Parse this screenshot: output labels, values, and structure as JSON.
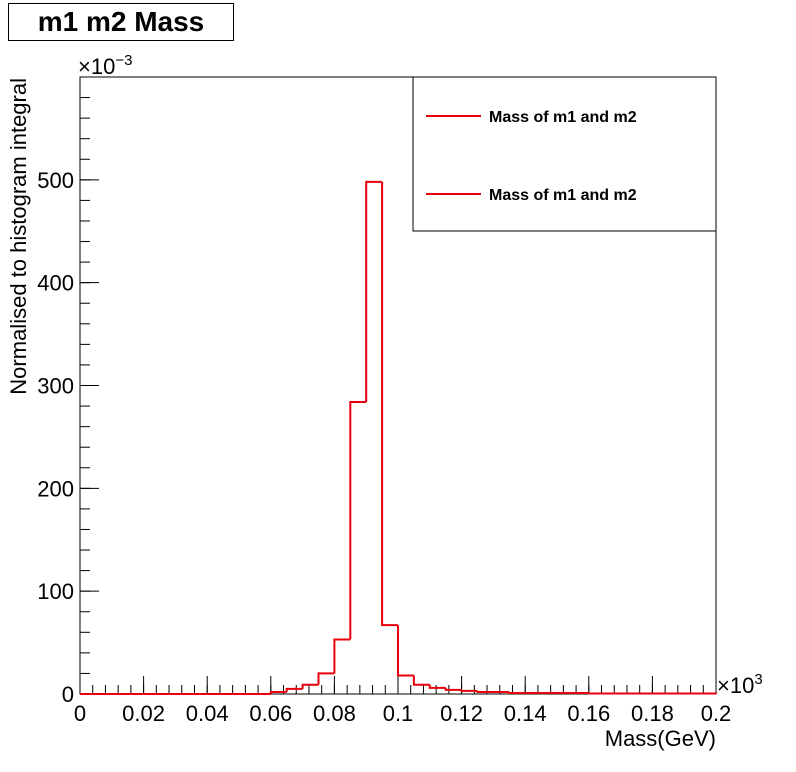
{
  "chart_data": {
    "type": "bar",
    "title": "m1 m2 Mass",
    "xlabel": "Mass(GeV)",
    "ylabel": "Normalised to histogram integral",
    "x_multiplier_label": "×10",
    "x_multiplier_exp": "3",
    "y_multiplier_label": "×10",
    "y_multiplier_exp": "−3",
    "xlim": [
      0,
      0.2
    ],
    "ylim": [
      0,
      600
    ],
    "x_ticks": [
      "0",
      "0.02",
      "0.04",
      "0.06",
      "0.08",
      "0.1",
      "0.12",
      "0.14",
      "0.16",
      "0.18",
      "0.2"
    ],
    "x_tick_values": [
      0,
      0.02,
      0.04,
      0.06,
      0.08,
      0.1,
      0.12,
      0.14,
      0.16,
      0.18,
      0.2
    ],
    "y_ticks": [
      "0",
      "100",
      "200",
      "300",
      "400",
      "500"
    ],
    "y_tick_values": [
      0,
      100,
      200,
      300,
      400,
      500
    ],
    "bin_edges": [
      0,
      0.005,
      0.01,
      0.015,
      0.02,
      0.025,
      0.03,
      0.035,
      0.04,
      0.045,
      0.05,
      0.055,
      0.06,
      0.065,
      0.07,
      0.075,
      0.08,
      0.085,
      0.09,
      0.095,
      0.1,
      0.105,
      0.11,
      0.115,
      0.12,
      0.125,
      0.13,
      0.135,
      0.14,
      0.145,
      0.15,
      0.155,
      0.16,
      0.165,
      0.17,
      0.175,
      0.18,
      0.185,
      0.19,
      0.195,
      0.2
    ],
    "series": [
      {
        "name": "Mass of m1 and m2",
        "color": "#e8000b",
        "values": [
          0,
          0,
          0,
          0,
          0,
          0,
          0,
          0,
          0,
          0,
          0,
          0,
          2,
          5,
          9,
          20,
          53,
          284,
          498,
          67,
          18,
          9,
          6,
          4,
          3,
          2,
          2,
          1,
          1,
          1,
          1,
          1,
          0.5,
          0.5,
          0.5,
          0.5,
          0.5,
          0.5,
          0.5,
          0.5
        ]
      }
    ],
    "legend": {
      "placement": "top-right",
      "entries": [
        "Mass of m1 and m2",
        "Mass of m1 and m2"
      ]
    },
    "grid": false
  }
}
